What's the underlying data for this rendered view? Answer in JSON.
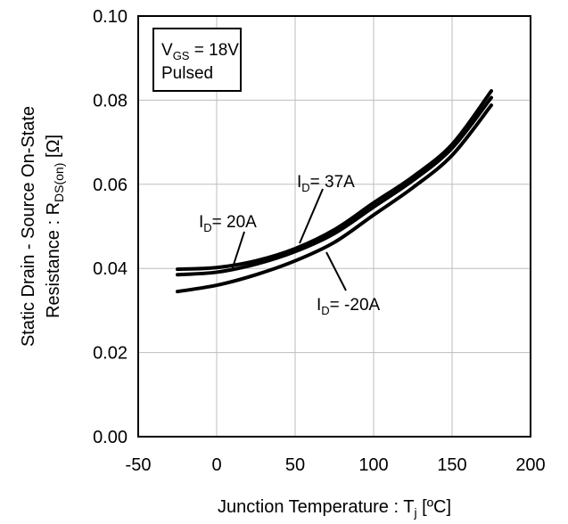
{
  "chart_data": {
    "type": "line",
    "xlabel": "Junction Temperature : T",
    "xlabel_sub": "j",
    "xlabel_unit": " [ºC]",
    "ylabel_line1": "Static Drain - Source On-State",
    "ylabel_line2_main": "Resistance : R",
    "ylabel_line2_sub": "DS(on)",
    "ylabel_line2_unit": " [Ω]",
    "xlim": [
      -50,
      200
    ],
    "ylim": [
      0,
      0.1
    ],
    "x_ticks": [
      -50,
      0,
      50,
      100,
      150,
      200
    ],
    "x_tick_labels": [
      "-50",
      "0",
      "50",
      "100",
      "150",
      "200"
    ],
    "y_ticks": [
      0,
      0.02,
      0.04,
      0.06,
      0.08,
      0.1
    ],
    "y_tick_labels": [
      "0.00",
      "0.02",
      "0.04",
      "0.06",
      "0.08",
      "0.10"
    ],
    "grid": true,
    "legend": {
      "position": "top-left",
      "line1_main": "V",
      "line1_sub": "GS",
      "line1_rest": " = 18V",
      "line2": "Pulsed"
    },
    "series": [
      {
        "name": "37A",
        "label_main": "I",
        "label_sub": "D",
        "label_rest": "= 37A",
        "x": [
          -25,
          0,
          25,
          50,
          75,
          100,
          125,
          150,
          175
        ],
        "y": [
          0.0398,
          0.0402,
          0.0418,
          0.0447,
          0.0492,
          0.0556,
          0.0618,
          0.0695,
          0.0822
        ]
      },
      {
        "name": "20A",
        "label_main": "I",
        "label_sub": "D",
        "label_rest": "= 20A",
        "x": [
          -25,
          0,
          25,
          50,
          75,
          100,
          125,
          150,
          175
        ],
        "y": [
          0.0385,
          0.0391,
          0.041,
          0.044,
          0.0483,
          0.0546,
          0.0609,
          0.0686,
          0.0806
        ]
      },
      {
        "name": "-20A",
        "label_main": "I",
        "label_sub": "D",
        "label_rest": "= -20A",
        "x": [
          -25,
          0,
          25,
          50,
          75,
          100,
          125,
          150,
          175
        ],
        "y": [
          0.0345,
          0.036,
          0.0385,
          0.0418,
          0.0462,
          0.0527,
          0.0592,
          0.0669,
          0.0788
        ]
      }
    ]
  }
}
